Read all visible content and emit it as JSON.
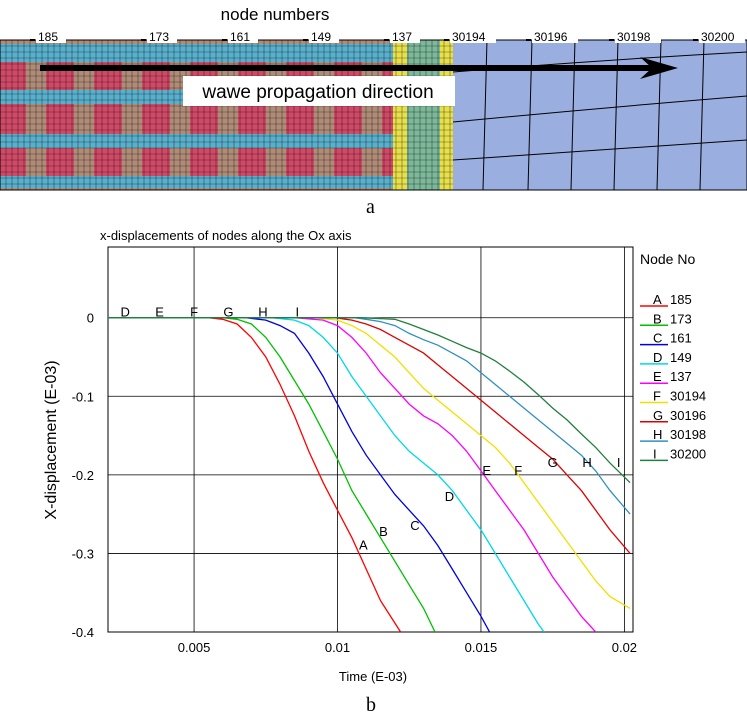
{
  "panel_a": {
    "header": "node numbers",
    "node_labels": [
      "185",
      "173",
      "161",
      "149",
      "137",
      "30194",
      "30196",
      "30198",
      "30200"
    ],
    "arrow_label": "wawe propagation direction",
    "caption": "a",
    "colors": {
      "red_tow": "#d04a68",
      "brown_tow": "#b08c78",
      "blue_tow": "#58b0cc",
      "green_zone": "#7cb89a",
      "yellow_zone": "#e8e04a",
      "homogeneous": "#9aaee0",
      "mesh_line": "#000000"
    }
  },
  "panel_b": {
    "caption": "b"
  },
  "chart_data": {
    "type": "line",
    "title": "x-displacements of nodes along the Ox axis",
    "xlabel": "Time (E-03)",
    "ylabel": "X-displacement (E-03)",
    "xlim": [
      0.002,
      0.0203
    ],
    "ylim": [
      -0.4,
      0.09
    ],
    "x_ticks": [
      0.005,
      0.01,
      0.015,
      0.02
    ],
    "x_tick_labels": [
      "0.005",
      "0.01",
      "0.015",
      "0.02"
    ],
    "y_ticks": [
      0,
      -0.1,
      -0.2,
      -0.3,
      -0.4
    ],
    "y_tick_labels": [
      "0",
      "-0.1",
      "-0.2",
      "-0.3",
      "-0.4"
    ],
    "grid": true,
    "legend_title": "Node No",
    "legend_position": "right",
    "series": [
      {
        "name": "185",
        "marker": "A",
        "color": "#ff0000",
        "marker_label_xy": [
          0.0109,
          -0.295
        ],
        "points": [
          [
            0.002,
            0
          ],
          [
            0.0055,
            0
          ],
          [
            0.006,
            -0.002
          ],
          [
            0.0065,
            -0.008
          ],
          [
            0.007,
            -0.025
          ],
          [
            0.0075,
            -0.05
          ],
          [
            0.008,
            -0.085
          ],
          [
            0.0085,
            -0.125
          ],
          [
            0.009,
            -0.17
          ],
          [
            0.0095,
            -0.21
          ],
          [
            0.01,
            -0.245
          ],
          [
            0.0105,
            -0.28
          ],
          [
            0.011,
            -0.32
          ],
          [
            0.0115,
            -0.36
          ],
          [
            0.0122,
            -0.4
          ]
        ]
      },
      {
        "name": "173",
        "marker": "B",
        "color": "#00c000",
        "marker_label_xy": [
          0.0116,
          -0.278
        ],
        "points": [
          [
            0.002,
            0
          ],
          [
            0.006,
            0
          ],
          [
            0.0065,
            -0.002
          ],
          [
            0.007,
            -0.008
          ],
          [
            0.0075,
            -0.025
          ],
          [
            0.008,
            -0.05
          ],
          [
            0.0085,
            -0.08
          ],
          [
            0.009,
            -0.11
          ],
          [
            0.0095,
            -0.145
          ],
          [
            0.01,
            -0.18
          ],
          [
            0.0105,
            -0.22
          ],
          [
            0.011,
            -0.25
          ],
          [
            0.0115,
            -0.28
          ],
          [
            0.012,
            -0.31
          ],
          [
            0.0125,
            -0.34
          ],
          [
            0.013,
            -0.37
          ],
          [
            0.0134,
            -0.4
          ]
        ]
      },
      {
        "name": "161",
        "marker": "C",
        "color": "#0000e0",
        "marker_label_xy": [
          0.0127,
          -0.27
        ],
        "points": [
          [
            0.002,
            0
          ],
          [
            0.0068,
            0
          ],
          [
            0.0075,
            -0.003
          ],
          [
            0.008,
            -0.01
          ],
          [
            0.0085,
            -0.02
          ],
          [
            0.009,
            -0.045
          ],
          [
            0.0095,
            -0.075
          ],
          [
            0.01,
            -0.11
          ],
          [
            0.0105,
            -0.145
          ],
          [
            0.011,
            -0.175
          ],
          [
            0.0115,
            -0.2
          ],
          [
            0.012,
            -0.225
          ],
          [
            0.0125,
            -0.245
          ],
          [
            0.013,
            -0.265
          ],
          [
            0.0135,
            -0.29
          ],
          [
            0.014,
            -0.32
          ],
          [
            0.0145,
            -0.35
          ],
          [
            0.015,
            -0.38
          ],
          [
            0.0153,
            -0.4
          ]
        ]
      },
      {
        "name": "149",
        "marker": "D",
        "color": "#00d8e8",
        "marker_label_xy": [
          0.0139,
          -0.233
        ],
        "points": [
          [
            0.002,
            0
          ],
          [
            0.0077,
            0
          ],
          [
            0.0085,
            -0.003
          ],
          [
            0.009,
            -0.01
          ],
          [
            0.0095,
            -0.025
          ],
          [
            0.01,
            -0.045
          ],
          [
            0.0105,
            -0.075
          ],
          [
            0.011,
            -0.1
          ],
          [
            0.0115,
            -0.125
          ],
          [
            0.012,
            -0.15
          ],
          [
            0.0125,
            -0.17
          ],
          [
            0.013,
            -0.185
          ],
          [
            0.0135,
            -0.2
          ],
          [
            0.014,
            -0.22
          ],
          [
            0.0145,
            -0.245
          ],
          [
            0.015,
            -0.27
          ],
          [
            0.0155,
            -0.3
          ],
          [
            0.016,
            -0.33
          ],
          [
            0.0165,
            -0.36
          ],
          [
            0.017,
            -0.39
          ],
          [
            0.0172,
            -0.4
          ]
        ]
      },
      {
        "name": "137",
        "marker": "E",
        "color": "#ff00ff",
        "marker_label_xy": [
          0.0152,
          -0.2
        ],
        "points": [
          [
            0.002,
            0
          ],
          [
            0.0085,
            0
          ],
          [
            0.0095,
            -0.003
          ],
          [
            0.01,
            -0.01
          ],
          [
            0.0105,
            -0.025
          ],
          [
            0.011,
            -0.045
          ],
          [
            0.0115,
            -0.07
          ],
          [
            0.012,
            -0.09
          ],
          [
            0.0125,
            -0.11
          ],
          [
            0.013,
            -0.125
          ],
          [
            0.0135,
            -0.135
          ],
          [
            0.014,
            -0.15
          ],
          [
            0.0145,
            -0.17
          ],
          [
            0.015,
            -0.195
          ],
          [
            0.0155,
            -0.22
          ],
          [
            0.016,
            -0.245
          ],
          [
            0.0165,
            -0.27
          ],
          [
            0.017,
            -0.3
          ],
          [
            0.0175,
            -0.33
          ],
          [
            0.018,
            -0.355
          ],
          [
            0.0185,
            -0.38
          ],
          [
            0.019,
            -0.4
          ]
        ]
      },
      {
        "name": "30194",
        "marker": "F",
        "color": "#f0e000",
        "marker_label_xy": [
          0.0163,
          -0.2
        ],
        "points": [
          [
            0.002,
            0
          ],
          [
            0.0092,
            0
          ],
          [
            0.01,
            -0.003
          ],
          [
            0.0105,
            -0.01
          ],
          [
            0.011,
            -0.02
          ],
          [
            0.0115,
            -0.035
          ],
          [
            0.012,
            -0.05
          ],
          [
            0.0125,
            -0.07
          ],
          [
            0.013,
            -0.09
          ],
          [
            0.0135,
            -0.105
          ],
          [
            0.014,
            -0.12
          ],
          [
            0.0145,
            -0.135
          ],
          [
            0.015,
            -0.15
          ],
          [
            0.0155,
            -0.165
          ],
          [
            0.016,
            -0.185
          ],
          [
            0.0165,
            -0.21
          ],
          [
            0.017,
            -0.235
          ],
          [
            0.0175,
            -0.26
          ],
          [
            0.018,
            -0.285
          ],
          [
            0.0185,
            -0.31
          ],
          [
            0.019,
            -0.335
          ],
          [
            0.0195,
            -0.355
          ],
          [
            0.0202,
            -0.37
          ]
        ]
      },
      {
        "name": "30196",
        "marker": "G",
        "color": "#e00000",
        "marker_label_xy": [
          0.0175,
          -0.19
        ],
        "points": [
          [
            0.002,
            0
          ],
          [
            0.0099,
            0
          ],
          [
            0.0105,
            -0.003
          ],
          [
            0.011,
            -0.008
          ],
          [
            0.0115,
            -0.015
          ],
          [
            0.012,
            -0.025
          ],
          [
            0.0125,
            -0.035
          ],
          [
            0.013,
            -0.045
          ],
          [
            0.0135,
            -0.06
          ],
          [
            0.014,
            -0.075
          ],
          [
            0.0145,
            -0.09
          ],
          [
            0.015,
            -0.105
          ],
          [
            0.0155,
            -0.12
          ],
          [
            0.016,
            -0.135
          ],
          [
            0.0165,
            -0.15
          ],
          [
            0.017,
            -0.165
          ],
          [
            0.0175,
            -0.18
          ],
          [
            0.018,
            -0.2
          ],
          [
            0.0185,
            -0.22
          ],
          [
            0.019,
            -0.245
          ],
          [
            0.0195,
            -0.27
          ],
          [
            0.0202,
            -0.3
          ]
        ]
      },
      {
        "name": "30198",
        "marker": "H",
        "color": "#3090c0",
        "marker_label_xy": [
          0.0187,
          -0.19
        ],
        "points": [
          [
            0.002,
            0
          ],
          [
            0.0106,
            0
          ],
          [
            0.011,
            -0.002
          ],
          [
            0.0115,
            -0.005
          ],
          [
            0.012,
            -0.01
          ],
          [
            0.0125,
            -0.02
          ],
          [
            0.013,
            -0.028
          ],
          [
            0.0135,
            -0.035
          ],
          [
            0.014,
            -0.045
          ],
          [
            0.0145,
            -0.055
          ],
          [
            0.015,
            -0.07
          ],
          [
            0.0155,
            -0.085
          ],
          [
            0.016,
            -0.1
          ],
          [
            0.0165,
            -0.115
          ],
          [
            0.017,
            -0.13
          ],
          [
            0.0175,
            -0.145
          ],
          [
            0.018,
            -0.16
          ],
          [
            0.0185,
            -0.175
          ],
          [
            0.019,
            -0.195
          ],
          [
            0.0195,
            -0.22
          ],
          [
            0.0202,
            -0.25
          ]
        ]
      },
      {
        "name": "30200",
        "marker": "I",
        "color": "#208040",
        "marker_label_xy": [
          0.0198,
          -0.19
        ],
        "points": [
          [
            0.002,
            0
          ],
          [
            0.0108,
            0
          ],
          [
            0.012,
            -0.002
          ],
          [
            0.0125,
            -0.008
          ],
          [
            0.013,
            -0.015
          ],
          [
            0.0135,
            -0.022
          ],
          [
            0.014,
            -0.03
          ],
          [
            0.0145,
            -0.038
          ],
          [
            0.015,
            -0.045
          ],
          [
            0.0155,
            -0.055
          ],
          [
            0.016,
            -0.068
          ],
          [
            0.0165,
            -0.082
          ],
          [
            0.017,
            -0.098
          ],
          [
            0.0175,
            -0.115
          ],
          [
            0.018,
            -0.13
          ],
          [
            0.0185,
            -0.148
          ],
          [
            0.019,
            -0.165
          ],
          [
            0.0195,
            -0.185
          ],
          [
            0.0202,
            -0.21
          ]
        ]
      }
    ]
  }
}
